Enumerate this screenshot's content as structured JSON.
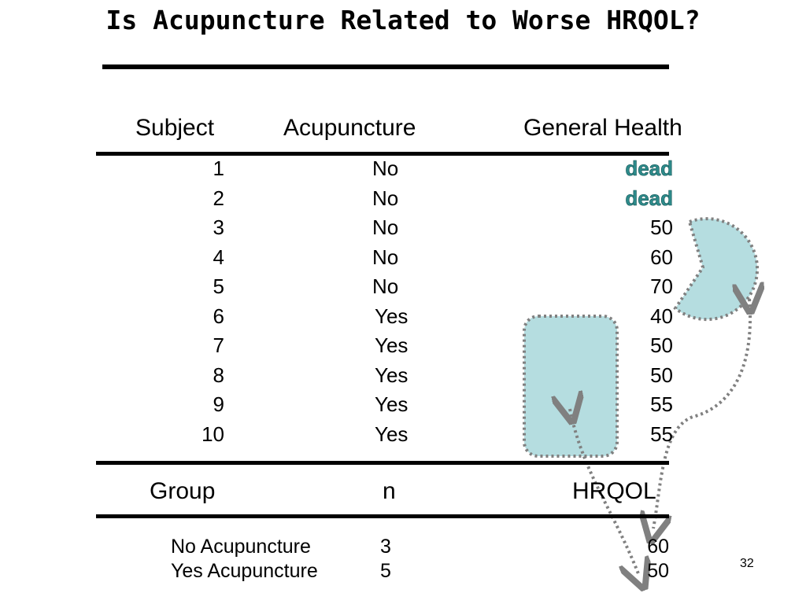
{
  "slide": {
    "title": "Is Acupuncture Related to Worse HRQOL?",
    "page_number": "32"
  },
  "table": {
    "headers": [
      "Subject",
      "Acupuncture",
      "General Health"
    ],
    "rows": [
      {
        "subject": "1",
        "acupuncture": "No",
        "health": "dead"
      },
      {
        "subject": "2",
        "acupuncture": "No",
        "health": "dead"
      },
      {
        "subject": "3",
        "acupuncture": "No",
        "health": "50"
      },
      {
        "subject": "4",
        "acupuncture": "No",
        "health": "60"
      },
      {
        "subject": "5",
        "acupuncture": "No",
        "health": "70"
      },
      {
        "subject": "6",
        "acupuncture": "Yes",
        "health": "40"
      },
      {
        "subject": "7",
        "acupuncture": "Yes",
        "health": "50"
      },
      {
        "subject": "8",
        "acupuncture": "Yes",
        "health": "50"
      },
      {
        "subject": "9",
        "acupuncture": "Yes",
        "health": "55"
      },
      {
        "subject": "10",
        "acupuncture": "Yes",
        "health": "55"
      }
    ]
  },
  "summary": {
    "headers": [
      "Group",
      "n",
      "HRQOL"
    ],
    "rows": [
      {
        "group": "No Acupuncture",
        "n": "3",
        "hrqol": "60"
      },
      {
        "group": "Yes Acupuncture",
        "n": "5",
        "hrqol": "50"
      }
    ]
  },
  "colors": {
    "highlight_fill": "#b5dde0",
    "dotted_line": "#808080",
    "dead_text": "#2e8b8b"
  }
}
